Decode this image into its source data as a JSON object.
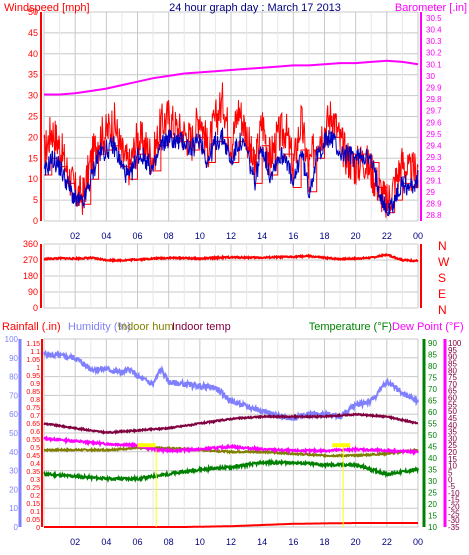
{
  "header": {
    "windspeed_label": "Windspeed [mph]",
    "title": "24 hour graph day : March 17 2013",
    "barometer_label": "Barometer [.in]"
  },
  "colors": {
    "wind": "#ff0000",
    "gust": "#ff0000",
    "avg_wind": "#0000c0",
    "barometer": "#ff00ff",
    "direction": "#ff0000",
    "rainfall": "#ff0000",
    "humidity": "#8080ff",
    "indoor_hum": "#808000",
    "indoor_temp": "#800040",
    "temperature": "#008000",
    "dew_point": "#ff00ff",
    "grid_major": "#c8c8c8",
    "grid_minor": "#e8e8e8",
    "highlight": "#ffff00"
  },
  "lower_labels": {
    "rainfall": "Rainfall (.in)",
    "humidity": "Humidity (%)",
    "indoor_hum": "Indoor hum",
    "indoor_temp": "Indoor temp",
    "temperature": "Temperature (°F)",
    "dew_point": "Dew Point (°F)"
  },
  "compass": [
    "N",
    "W",
    "S",
    "E",
    "N"
  ],
  "chart_data": [
    {
      "type": "line",
      "title": "24 hour graph day : March 17 2013",
      "xlabel": "",
      "ylabel": "Windspeed [mph]",
      "y2label": "Barometer [.in]",
      "x_ticks": [
        "02",
        "04",
        "06",
        "08",
        "10",
        "12",
        "14",
        "16",
        "18",
        "20",
        "22",
        "00"
      ],
      "y_ticks": [
        0,
        5,
        10,
        15,
        20,
        25,
        30,
        35,
        40,
        45,
        50
      ],
      "ylim": [
        0,
        50
      ],
      "y2_ticks": [
        "28.8",
        "28.9",
        "29",
        "29.1",
        "29.2",
        "29.3",
        "29.4",
        "29.5",
        "29.6",
        "29.7",
        "29.8",
        "29.9",
        "30",
        "30.1",
        "30.2",
        "30.3",
        "30.4",
        "30.5"
      ],
      "y2lim": [
        28.75,
        30.55
      ],
      "series": [
        {
          "name": "Windspeed",
          "x": [
            0,
            0.5,
            1,
            1.5,
            2,
            2.5,
            3,
            3.5,
            4,
            4.5,
            5,
            5.5,
            6,
            6.5,
            7,
            7.5,
            8,
            8.5,
            9,
            9.5,
            10,
            10.5,
            11,
            11.5,
            12,
            12.5,
            13,
            13.5,
            14,
            14.5,
            15,
            15.5,
            16,
            16.5,
            17,
            17.5,
            18,
            18.5,
            19,
            19.5,
            20,
            20.5,
            21,
            21.5,
            22,
            22.5,
            23,
            23.5,
            24
          ],
          "values": [
            16,
            22,
            18,
            12,
            7,
            6,
            14,
            20,
            21,
            24,
            16,
            13,
            20,
            18,
            15,
            23,
            25,
            22,
            21,
            19,
            26,
            17,
            24,
            29,
            18,
            27,
            21,
            12,
            24,
            15,
            20,
            22,
            13,
            24,
            12,
            20,
            22,
            26,
            19,
            15,
            13,
            15,
            12,
            8,
            4,
            9,
            14,
            11,
            13
          ]
        },
        {
          "name": "Average wind",
          "x": [
            0,
            0.5,
            1,
            1.5,
            2,
            2.5,
            3,
            3.5,
            4,
            4.5,
            5,
            5.5,
            6,
            6.5,
            7,
            7.5,
            8,
            8.5,
            9,
            9.5,
            10,
            10.5,
            11,
            11.5,
            12,
            12.5,
            13,
            13.5,
            14,
            14.5,
            15,
            15.5,
            16,
            16.5,
            17,
            17.5,
            18,
            18.5,
            19,
            19.5,
            20,
            20.5,
            21,
            21.5,
            22,
            22.5,
            23,
            23.5,
            24
          ],
          "values": [
            11,
            15,
            13,
            9,
            5,
            4,
            10,
            16,
            17,
            18,
            13,
            10,
            16,
            15,
            12,
            18,
            20,
            19,
            19,
            17,
            20,
            14,
            19,
            20,
            14,
            19,
            17,
            9,
            18,
            11,
            15,
            16,
            8,
            17,
            7,
            15,
            19,
            20,
            16,
            16,
            15,
            16,
            14,
            8,
            2,
            5,
            9,
            8,
            10
          ]
        },
        {
          "name": "Barometer",
          "axis": "right",
          "x": [
            0,
            1,
            2,
            3,
            4,
            5,
            6,
            7,
            8,
            9,
            10,
            11,
            12,
            13,
            14,
            15,
            16,
            17,
            18,
            19,
            20,
            21,
            22,
            23,
            24
          ],
          "values": [
            29.84,
            29.84,
            29.85,
            29.87,
            29.89,
            29.92,
            29.95,
            29.98,
            30.0,
            30.02,
            30.03,
            30.04,
            30.05,
            30.06,
            30.07,
            30.08,
            30.09,
            30.09,
            30.1,
            30.11,
            30.11,
            30.12,
            30.13,
            30.12,
            30.1
          ]
        }
      ]
    },
    {
      "type": "line",
      "title": "",
      "ylabel": "",
      "y_ticks": [
        0,
        90,
        180,
        270,
        360
      ],
      "ylim": [
        0,
        360
      ],
      "series": [
        {
          "name": "Wind direction",
          "x": [
            0,
            1,
            2,
            3,
            4,
            5,
            6,
            7,
            8,
            9,
            10,
            11,
            12,
            13,
            14,
            15,
            16,
            17,
            18,
            19,
            20,
            21,
            22,
            23,
            24
          ],
          "values": [
            275,
            280,
            278,
            282,
            270,
            268,
            273,
            278,
            282,
            281,
            277,
            283,
            285,
            284,
            283,
            286,
            288,
            292,
            282,
            276,
            278,
            283,
            300,
            270,
            265
          ]
        }
      ]
    },
    {
      "type": "line",
      "title": "",
      "x_ticks": [
        "02",
        "04",
        "06",
        "08",
        "10",
        "12",
        "14",
        "16",
        "18",
        "20",
        "22",
        "00"
      ],
      "rain_ticks": [
        "0",
        "0.05",
        "0.1",
        "0.15",
        "0.2",
        "0.25",
        "0.3",
        "0.35",
        "0.4",
        "0.45",
        "0.5",
        "0.55",
        "0.6",
        "0.65",
        "0.7",
        "0.75",
        "0.8",
        "0.85",
        "0.9",
        "0.95",
        "1",
        "1.05",
        "1.1",
        "1.15"
      ],
      "hum_ticks": [
        0,
        10,
        20,
        30,
        40,
        50,
        60,
        70,
        80,
        90,
        100
      ],
      "temp_ticks": [
        10,
        15,
        20,
        25,
        30,
        35,
        40,
        45,
        50,
        55,
        60,
        65,
        70,
        75,
        80,
        85,
        90
      ],
      "dew_ticks": [
        -35,
        -30,
        -25,
        -20,
        -15,
        -10,
        -5,
        0,
        5,
        10,
        15,
        20,
        25,
        30,
        35,
        40,
        45,
        50,
        55,
        60,
        65,
        70,
        75,
        80,
        85,
        90,
        95,
        100
      ],
      "series": [
        {
          "name": "Rainfall (.in)",
          "x": [
            0,
            8,
            9,
            12,
            16,
            20,
            24
          ],
          "values": [
            0,
            0,
            0,
            0.005,
            0.02,
            0.025,
            0.025
          ]
        },
        {
          "name": "Humidity (%)",
          "x": [
            0,
            2,
            3,
            4,
            5,
            5.5,
            6,
            7,
            7.5,
            8,
            10,
            11,
            12,
            13,
            14,
            15,
            16,
            17,
            18,
            19,
            20,
            21,
            22,
            22.5,
            23,
            24
          ],
          "values": [
            92,
            90,
            84,
            84,
            82,
            84,
            80,
            76,
            84,
            77,
            75,
            74,
            67,
            64,
            62,
            59,
            58,
            60,
            60,
            59,
            65,
            67,
            77,
            75,
            71,
            67
          ]
        },
        {
          "name": "Indoor hum",
          "x": [
            0,
            2,
            4,
            6,
            8,
            10,
            12,
            14,
            16,
            18,
            20,
            22,
            24
          ],
          "values": [
            41,
            41,
            41,
            42,
            42,
            41,
            40,
            40,
            39,
            38,
            38,
            39,
            41
          ]
        },
        {
          "name": "Indoor temp",
          "x": [
            0,
            2,
            4,
            6,
            8,
            10,
            12,
            14,
            16,
            18,
            20,
            22,
            24
          ],
          "values": [
            55,
            53,
            51,
            52,
            53,
            55,
            57,
            58,
            58,
            58,
            59,
            58,
            55
          ]
        },
        {
          "name": "Temperature (°F)",
          "x": [
            0,
            2,
            4,
            6,
            8,
            10,
            12,
            14,
            16,
            18,
            20,
            22,
            24
          ],
          "values": [
            33,
            32,
            31,
            31,
            33,
            35,
            36,
            38,
            38,
            37,
            37,
            33,
            35
          ]
        },
        {
          "name": "Dew Point (°F)",
          "x": [
            0,
            2,
            4,
            6,
            7,
            8,
            10,
            12,
            14,
            16,
            18,
            20,
            22,
            24
          ],
          "values": [
            30,
            28,
            26,
            25,
            22,
            21,
            22,
            24,
            22,
            21,
            21,
            22,
            21,
            20
          ]
        }
      ]
    }
  ]
}
